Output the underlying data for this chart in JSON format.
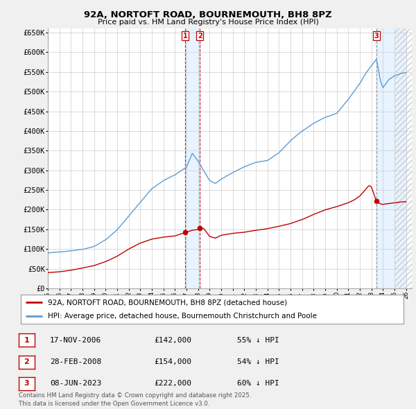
{
  "title": "92A, NORTOFT ROAD, BOURNEMOUTH, BH8 8PZ",
  "subtitle": "Price paid vs. HM Land Registry's House Price Index (HPI)",
  "ylim": [
    0,
    660000
  ],
  "yticks": [
    0,
    50000,
    100000,
    150000,
    200000,
    250000,
    300000,
    350000,
    400000,
    450000,
    500000,
    550000,
    600000,
    650000
  ],
  "ytick_labels": [
    "£0",
    "£50K",
    "£100K",
    "£150K",
    "£200K",
    "£250K",
    "£300K",
    "£350K",
    "£400K",
    "£450K",
    "£500K",
    "£550K",
    "£600K",
    "£650K"
  ],
  "hpi_color": "#5b9bd5",
  "price_color": "#c00000",
  "sale_dates": [
    2006.88,
    2008.16,
    2023.44
  ],
  "sale_prices": [
    142000,
    154000,
    222000
  ],
  "sale_labels": [
    "1",
    "2",
    "3"
  ],
  "legend_entries": [
    "92A, NORTOFT ROAD, BOURNEMOUTH, BH8 8PZ (detached house)",
    "HPI: Average price, detached house, Bournemouth Christchurch and Poole"
  ],
  "table_rows": [
    {
      "num": "1",
      "date": "17-NOV-2006",
      "price": "£142,000",
      "hpi": "55% ↓ HPI"
    },
    {
      "num": "2",
      "date": "28-FEB-2008",
      "price": "£154,000",
      "hpi": "54% ↓ HPI"
    },
    {
      "num": "3",
      "date": "08-JUN-2023",
      "price": "£222,000",
      "hpi": "60% ↓ HPI"
    }
  ],
  "footnote": "Contains HM Land Registry data © Crown copyright and database right 2025.\nThis data is licensed under the Open Government Licence v3.0.",
  "background_color": "#f0f0f0",
  "plot_bg_color": "#ffffff",
  "grid_color": "#cccccc",
  "shade_color": "#ddeeff",
  "hatch_color": "#cccccc"
}
